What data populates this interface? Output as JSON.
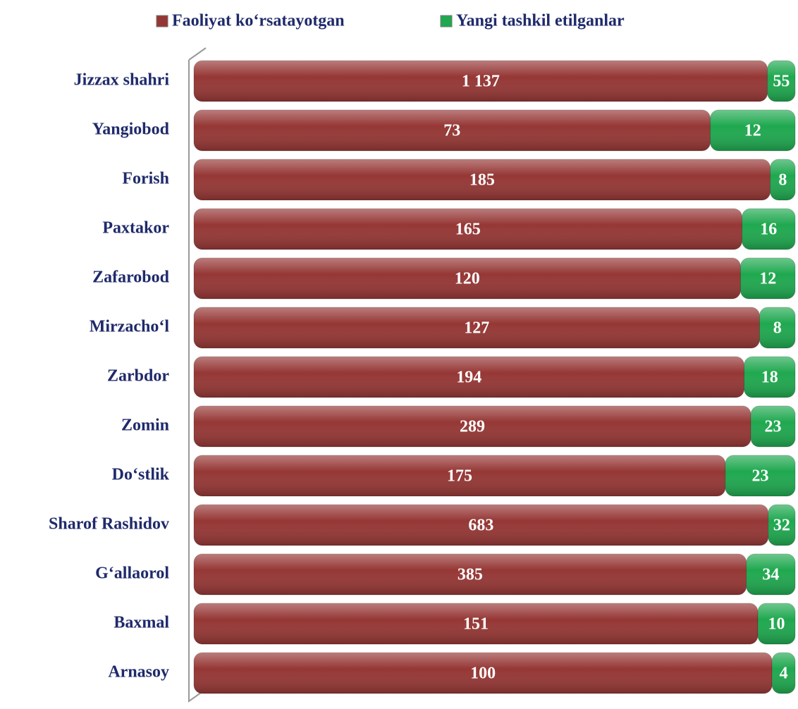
{
  "chart_data": {
    "type": "bar",
    "orientation": "horizontal",
    "stacked": "percent",
    "categories": [
      "Jizzax shahri",
      "Yangiobod",
      "Forish",
      "Paxtakor",
      "Zafarobod",
      "Mirzacho‘l",
      "Zarbdor",
      "Zomin",
      "Do‘stlik",
      "Sharof Rashidov",
      "G‘allaorol",
      "Baxmal",
      "Arnasoy"
    ],
    "series": [
      {
        "name": "Faoliyat ko‘rsatayotgan",
        "color": "#953735",
        "values": [
          1137,
          73,
          185,
          165,
          120,
          127,
          194,
          289,
          175,
          683,
          385,
          151,
          100
        ],
        "value_labels": [
          "1 137",
          "73",
          "185",
          "165",
          "120",
          "127",
          "194",
          "289",
          "175",
          "683",
          "385",
          "151",
          "100"
        ]
      },
      {
        "name": "Yangi tashkil etilganlar",
        "color": "#1fa84f",
        "values": [
          55,
          12,
          8,
          16,
          12,
          8,
          18,
          23,
          23,
          32,
          34,
          10,
          4
        ]
      }
    ],
    "legend": "top"
  }
}
